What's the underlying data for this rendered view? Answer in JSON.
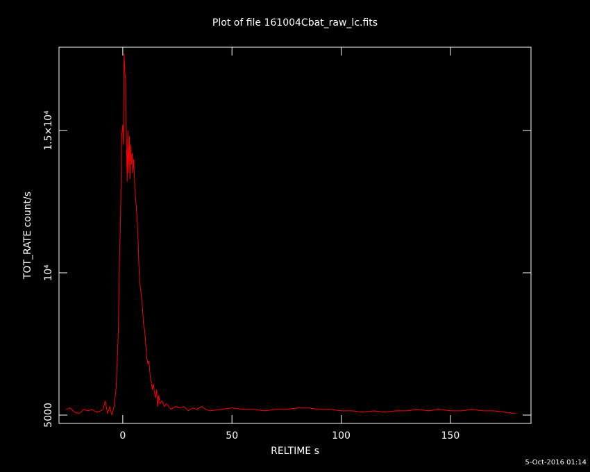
{
  "chart_data": {
    "type": "line",
    "title": "Plot of file 161004Cbat_raw_lc.fits",
    "x_label": "RELTIME  s",
    "y_label": "TOT_RATE  count/s",
    "footer": "5-Oct-2016 01:14",
    "x": [
      -26,
      -24,
      -22,
      -20,
      -18,
      -16,
      -14,
      -12,
      -10,
      -9,
      -8,
      -7,
      -6,
      -5,
      -4,
      -3,
      -2,
      -1.5,
      -1,
      -0.5,
      0,
      0.3,
      0.6,
      1,
      1.3,
      1.6,
      2,
      2.3,
      2.6,
      3,
      3.3,
      3.6,
      4,
      4.3,
      4.6,
      5,
      5.5,
      6,
      6.5,
      7,
      7.5,
      8,
      8.5,
      9,
      9.5,
      10,
      10.5,
      11,
      11.5,
      12,
      12.5,
      13,
      13.5,
      14,
      14.5,
      15,
      15.5,
      16,
      16.5,
      17,
      18,
      19,
      20,
      22,
      24,
      26,
      28,
      30,
      32,
      34,
      36,
      38,
      40,
      45,
      50,
      55,
      60,
      65,
      70,
      75,
      80,
      85,
      90,
      95,
      100,
      105,
      110,
      115,
      120,
      125,
      130,
      135,
      140,
      145,
      150,
      155,
      160,
      165,
      170,
      175,
      180
    ],
    "series": [
      {
        "name": "TOT_RATE",
        "color": "#ff0000",
        "values": [
          5200,
          5250,
          5100,
          5050,
          5200,
          5150,
          5200,
          5100,
          5150,
          5200,
          5500,
          5050,
          5300,
          5000,
          5300,
          6000,
          8000,
          10500,
          12000,
          14800,
          15200,
          14500,
          17700,
          17000,
          16800,
          15000,
          13200,
          15000,
          13500,
          14800,
          13300,
          14500,
          13800,
          14200,
          13500,
          14000,
          13000,
          12500,
          12000,
          11200,
          10000,
          9500,
          9200,
          8800,
          8200,
          8000,
          7500,
          7000,
          6800,
          6900,
          6400,
          6200,
          5900,
          6100,
          5800,
          5600,
          5900,
          5300,
          5700,
          5400,
          5500,
          5300,
          5400,
          5200,
          5300,
          5250,
          5300,
          5150,
          5250,
          5200,
          5300,
          5200,
          5150,
          5200,
          5250,
          5200,
          5200,
          5150,
          5200,
          5200,
          5250,
          5250,
          5200,
          5200,
          5150,
          5150,
          5100,
          5150,
          5100,
          5150,
          5150,
          5200,
          5150,
          5200,
          5150,
          5150,
          5200,
          5150,
          5150,
          5100,
          5050
        ]
      }
    ],
    "xlim": [
      -29.2,
      186.9
    ],
    "ylim": [
      4707,
      17927
    ],
    "xticks": [
      0,
      50,
      100,
      150
    ],
    "yticks": [
      5000,
      {
        "value": 10000,
        "label": "10⁴"
      },
      {
        "value": 15000,
        "label": "1.5×10⁴"
      }
    ]
  }
}
